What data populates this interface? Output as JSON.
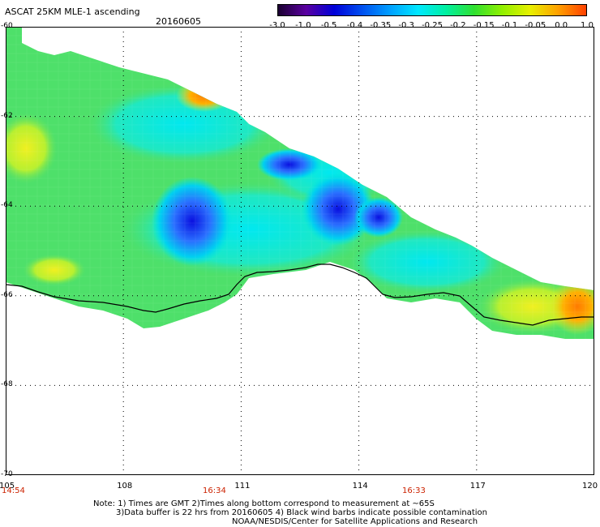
{
  "header": {
    "title": "ASCAT 25KM MLE-1 ascending",
    "date": "20160605"
  },
  "colorbar": {
    "labels": [
      "-3.0",
      "-1.0",
      "-0.5",
      "-0.4",
      "-0.35",
      "-0.3",
      "-0.25",
      "-0.2",
      "-0.15",
      "-0.1",
      "-0.05",
      "0.0",
      "1.0"
    ],
    "colors": [
      "#1a0030",
      "#5a00a0",
      "#0000d8",
      "#0050f0",
      "#00a0ff",
      "#00e8ff",
      "#00f0a0",
      "#30e030",
      "#90f000",
      "#e8f000",
      "#ffa000",
      "#ff4000"
    ]
  },
  "axes": {
    "x_ticks": [
      "105",
      "108",
      "111",
      "114",
      "117",
      "120"
    ],
    "y_ticks": [
      "-60",
      "-62",
      "-64",
      "-66",
      "-68",
      "-70"
    ],
    "x_range": [
      105,
      120
    ],
    "y_range": [
      -60,
      -70
    ]
  },
  "times": [
    "14:54",
    "16:34",
    "16:33"
  ],
  "notes": [
    "Note: 1) Times are GMT 2)Times along bottom correspond to measurement at ~65S",
    "3)Data buffer is 22 hrs from 20160605 4) Black wind barbs indicate possible contamination",
    "NOAA/NESDIS/Center for Satellite Applications and Research"
  ],
  "palette": {
    "field_main": "#4ee06a",
    "field_cyan": "#00e6e0",
    "field_blue": "#2a60ff",
    "field_deep_blue": "#0a10e0",
    "field_yellow": "#e8f020",
    "field_orange": "#ff8a00",
    "coastline": "#000000",
    "grid": "#000000"
  }
}
